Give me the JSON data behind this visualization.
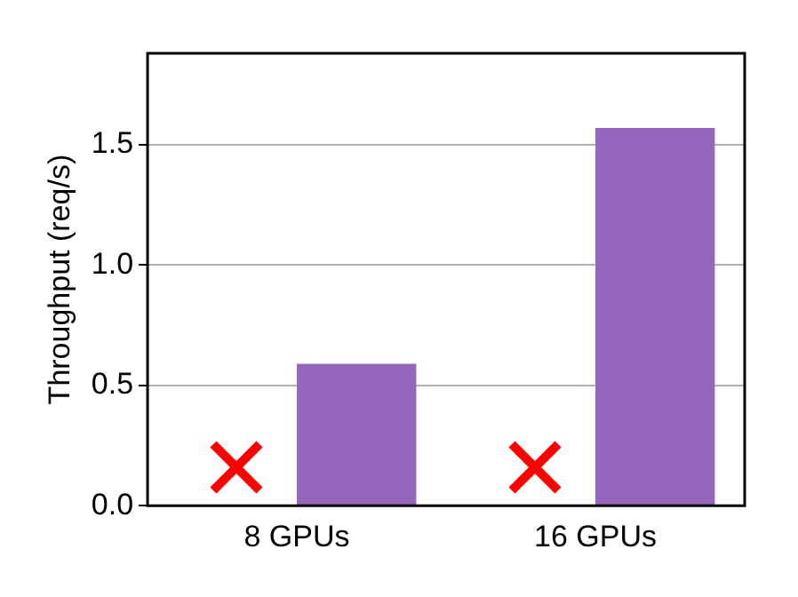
{
  "chart_data": {
    "type": "bar",
    "ylabel": "Throughput (req/s)",
    "categories": [
      "8 GPUs",
      "16 GPUs"
    ],
    "series": [
      {
        "values": [
          null,
          null
        ]
      },
      {
        "color": "#9467bd",
        "values": [
          0.59,
          1.57
        ]
      }
    ],
    "ylim": [
      0,
      1.88
    ],
    "yticks": [
      {
        "value": 0,
        "label": "0.0"
      },
      0.5,
      {
        "value": 1,
        "label": "1.0"
      },
      1.5
    ],
    "grid": "y"
  }
}
